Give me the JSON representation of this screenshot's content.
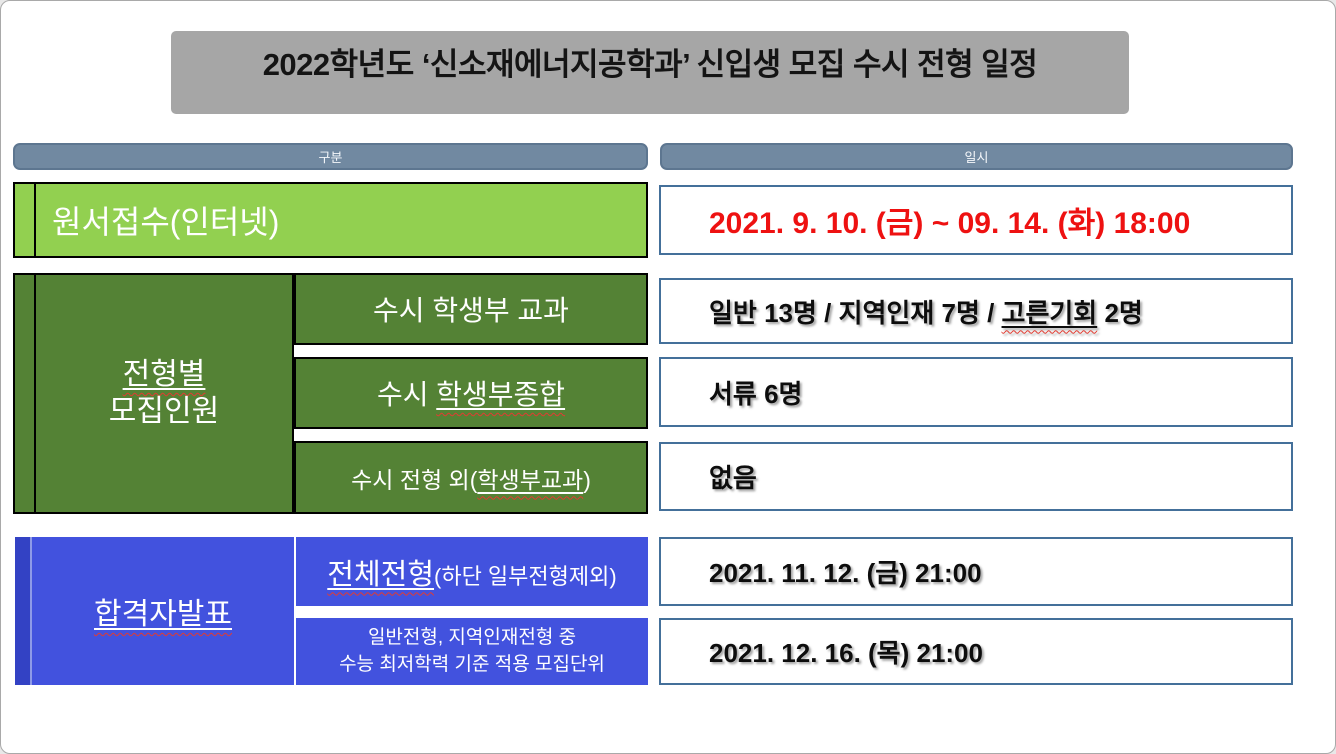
{
  "title": "2022학년도 ‘신소재에너지공학과’ 신입생 모집 수시 전형 일정",
  "columns": {
    "category": "구분",
    "datetime": "일시"
  },
  "rows": {
    "application": {
      "label": "원서접수(인터넷)",
      "value": "2021. 9. 10. (금) ~ 09. 14. (화) 18:00"
    },
    "quota": {
      "group_label_line1": "전형별",
      "group_label_line2": "모집인원",
      "sub1": {
        "label": "수시 학생부 교과",
        "value_prefix": "일반 13명 / 지역인재 7명 / ",
        "value_misspelled": "고른기회",
        "value_suffix": " 2명"
      },
      "sub2": {
        "label_prefix": "수시 ",
        "label_misspelled": "학생부종합",
        "value": "서류 6명"
      },
      "sub3": {
        "label_prefix": "수시 전형 외(",
        "label_misspelled": "학생부교과",
        "label_suffix": ")",
        "value": "없음"
      }
    },
    "announcement": {
      "group_label": "합격자발표",
      "sub1": {
        "label_main": "전체전형",
        "label_note": "(하단 일부전형제외)",
        "value": "2021. 11. 12. (금) 21:00"
      },
      "sub2": {
        "label_line1": "일반전형, 지역인재전형 중",
        "label_line2": "수능 최저학력 기준 적용 모집단위",
        "value": "2021. 12. 16. (목) 21:00"
      }
    }
  },
  "colors": {
    "title_bg": "#a6a6a6",
    "header_bg": "#7189a1",
    "header_border": "#5d7690",
    "light_green": "#92d050",
    "dark_green": "#548235",
    "blue": "#4252de",
    "dark_blue_strip": "#3342c4",
    "value_border": "#44709a",
    "date_red": "#ee1111",
    "squiggle_red": "#e23b31"
  }
}
